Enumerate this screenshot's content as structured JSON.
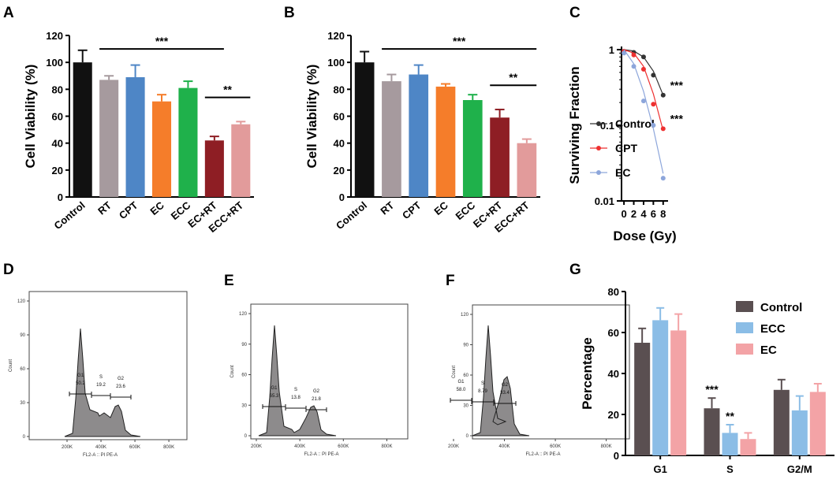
{
  "chart_data": [
    {
      "panel": "A",
      "type": "bar",
      "ylabel": "Cell Viability (%)",
      "ylim": [
        0,
        120
      ],
      "yticks": [
        "0",
        "20",
        "40",
        "60",
        "80",
        "100",
        "120"
      ],
      "categories": [
        "Control",
        "RT",
        "CPT",
        "EC",
        "ECC",
        "EC+RT",
        "ECC+RT"
      ],
      "values": [
        100,
        87,
        89,
        71,
        81,
        42,
        54
      ],
      "errors": [
        9,
        3,
        9,
        5,
        5,
        3,
        2
      ],
      "colors": [
        "#111111",
        "#a69a9e",
        "#4e86c6",
        "#f57d2a",
        "#1fb14b",
        "#8e1e24",
        "#e29b9b"
      ],
      "annotations": [
        {
          "label": "***",
          "from": 1,
          "to": 5
        },
        {
          "label": "**",
          "from": 5,
          "to": 6
        }
      ]
    },
    {
      "panel": "B",
      "type": "bar",
      "ylabel": "Cell Viability (%)",
      "ylim": [
        0,
        120
      ],
      "yticks": [
        "0",
        "20",
        "40",
        "60",
        "80",
        "100",
        "120"
      ],
      "categories": [
        "Control",
        "RT",
        "CPT",
        "EC",
        "ECC",
        "EC+RT",
        "ECC+RT"
      ],
      "values": [
        100,
        86,
        91,
        82,
        72,
        59,
        40
      ],
      "errors": [
        8,
        5,
        7,
        2,
        4,
        6,
        3
      ],
      "colors": [
        "#111111",
        "#a69a9e",
        "#4e86c6",
        "#f57d2a",
        "#1fb14b",
        "#8e1e24",
        "#e29b9b"
      ],
      "annotations": [
        {
          "label": "***",
          "from": 1,
          "to": 6
        },
        {
          "label": "**",
          "from": 5,
          "to": 6
        }
      ]
    },
    {
      "panel": "C",
      "type": "line",
      "xlabel": "Dose (Gy)",
      "ylabel": "Surviving Fraction",
      "yscale": "log",
      "ylim": [
        0.01,
        1
      ],
      "xlim": [
        -0.5,
        9
      ],
      "xticks": [
        "0",
        "2",
        "4",
        "6",
        "8"
      ],
      "yticks": [
        "0.01",
        "0.1",
        "1"
      ],
      "x": [
        0,
        2,
        4,
        6,
        8
      ],
      "series": [
        {
          "name": "Control",
          "color": "#333333",
          "points": [
            0.95,
            0.92,
            0.8,
            0.46,
            0.25
          ],
          "fit": [
            1,
            0.96,
            0.8,
            0.52,
            0.25
          ]
        },
        {
          "name": "CPT",
          "color": "#ee3030",
          "points": [
            0.95,
            0.85,
            0.55,
            0.19,
            0.09
          ],
          "fit": [
            1,
            0.9,
            0.6,
            0.26,
            0.085
          ]
        },
        {
          "name": "EC",
          "color": "#8da6db",
          "points": [
            0.9,
            0.6,
            0.21,
            0.1,
            0.02
          ],
          "fit": [
            1,
            0.65,
            0.28,
            0.09,
            0.023
          ]
        }
      ],
      "annotations": [
        {
          "label": "***",
          "series": "Control"
        },
        {
          "label": "***",
          "series": "CPT"
        }
      ]
    },
    {
      "panel": "D",
      "type": "histogram",
      "xlabel": "FL2-A :: PI PE-A",
      "ylabel": "Count",
      "yticks": [
        "0",
        "30",
        "60",
        "90",
        "120"
      ],
      "xticks": [
        "200K",
        "400K",
        "600K",
        "800K"
      ],
      "gates": [
        {
          "name": "G1",
          "value": "50.2"
        },
        {
          "name": "S",
          "value": "19.2"
        },
        {
          "name": "G2",
          "value": "23.6"
        }
      ]
    },
    {
      "panel": "E",
      "type": "histogram",
      "xlabel": "FL2-A :: PI PE-A",
      "ylabel": "Count",
      "yticks": [
        "0",
        "30",
        "60",
        "90",
        "120"
      ],
      "xticks": [
        "200K",
        "400K",
        "600K",
        "800K"
      ],
      "gates": [
        {
          "name": "G1",
          "value": "65.3"
        },
        {
          "name": "S",
          "value": "13.8"
        },
        {
          "name": "G2",
          "value": "21.8"
        }
      ]
    },
    {
      "panel": "F",
      "type": "histogram",
      "xlabel": "FL2-A :: PI PE-A",
      "ylabel": "Count",
      "yticks": [
        "0",
        "30",
        "60",
        "90",
        "120"
      ],
      "xticks": [
        "200K",
        "400K",
        "600K",
        "800K"
      ],
      "gates": [
        {
          "name": "G1",
          "value": "58.0"
        },
        {
          "name": "S",
          "value": "8.79"
        },
        {
          "name": "G2",
          "value": "33.4"
        }
      ]
    },
    {
      "panel": "G",
      "type": "bar",
      "ylabel": "Percentage",
      "ylim": [
        0,
        80
      ],
      "yticks": [
        "0",
        "20",
        "40",
        "60",
        "80"
      ],
      "categories": [
        "G1",
        "S",
        "G2/M"
      ],
      "series": [
        {
          "name": "Control",
          "color": "#5a4f51",
          "values": [
            55,
            23,
            32
          ],
          "errors": [
            7,
            5,
            5
          ]
        },
        {
          "name": "ECC",
          "color": "#8bbde6",
          "values": [
            66,
            11,
            22
          ],
          "errors": [
            6,
            4,
            7
          ]
        },
        {
          "name": "EC",
          "color": "#f3a3a6",
          "values": [
            61,
            8,
            31
          ],
          "errors": [
            8,
            3,
            4
          ]
        }
      ],
      "annotations": [
        {
          "label": "***",
          "category": "S",
          "series": "Control"
        },
        {
          "label": "**",
          "category": "S",
          "series": "ECC"
        }
      ]
    }
  ]
}
